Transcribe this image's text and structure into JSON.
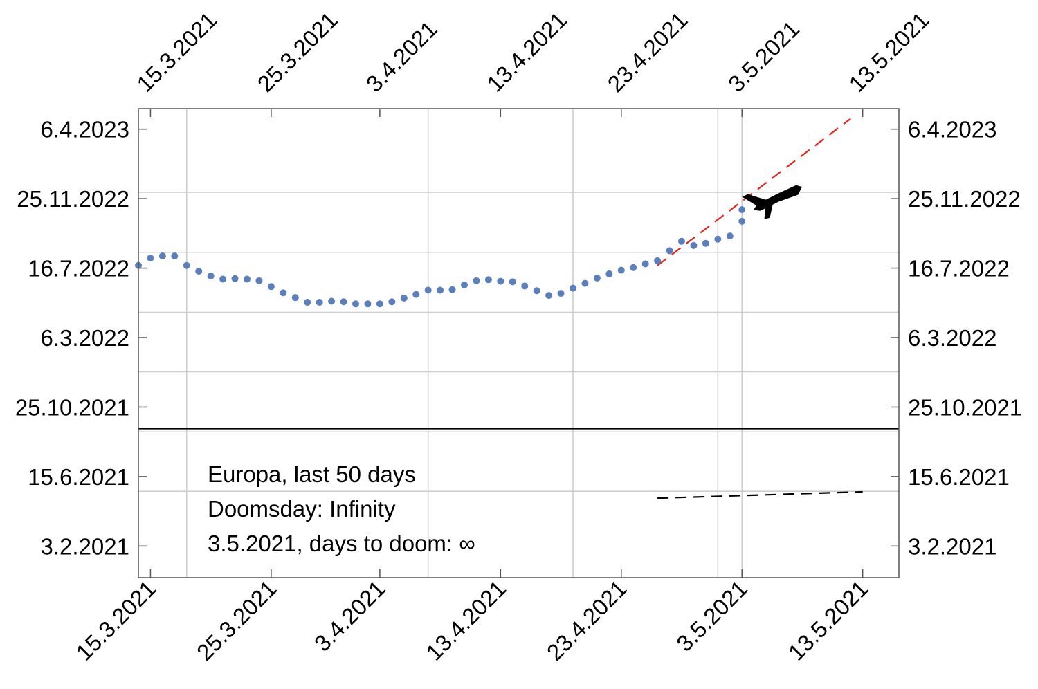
{
  "chart_data": {
    "type": "scatter",
    "x_axis": {
      "kind": "date",
      "range": [
        "2021-03-14",
        "2021-05-16"
      ],
      "ticks": [
        {
          "date": "2021-03-15",
          "label": "15.3.2021"
        },
        {
          "date": "2021-03-25",
          "label": "25.3.2021"
        },
        {
          "date": "2021-04-03",
          "label": "3.4.2021"
        },
        {
          "date": "2021-04-13",
          "label": "13.4.2021"
        },
        {
          "date": "2021-04-23",
          "label": "23.4.2021"
        },
        {
          "date": "2021-05-03",
          "label": "3.5.2021"
        },
        {
          "date": "2021-05-13",
          "label": "13.5.2021"
        }
      ],
      "gridlines": [
        "2021-03-18",
        "2021-04-07",
        "2021-04-19",
        "2021-05-01",
        "2021-05-03"
      ]
    },
    "y_axis": {
      "kind": "date",
      "range": [
        "2020-12-05",
        "2023-05-15"
      ],
      "ticks": [
        {
          "date": "2021-02-03",
          "label": "3.2.2021"
        },
        {
          "date": "2021-06-15",
          "label": "15.6.2021"
        },
        {
          "date": "2021-10-25",
          "label": "25.10.2021"
        },
        {
          "date": "2022-03-06",
          "label": "6.3.2022"
        },
        {
          "date": "2022-07-16",
          "label": "16.7.2022"
        },
        {
          "date": "2022-11-25",
          "label": "25.11.2022"
        },
        {
          "date": "2023-04-06",
          "label": "6.4.2023"
        }
      ],
      "gridlines": [
        "2021-05-18",
        "2021-09-08",
        "2021-12-31",
        "2022-04-23",
        "2022-08-15",
        "2022-12-07"
      ]
    },
    "reference_line": {
      "y": "2021-09-14"
    },
    "series": [
      {
        "color": "#5b7fbd",
        "x": [
          "2021-03-14",
          "2021-03-15",
          "2021-03-16",
          "2021-03-17",
          "2021-03-18",
          "2021-03-19",
          "2021-03-20",
          "2021-03-21",
          "2021-03-22",
          "2021-03-23",
          "2021-03-24",
          "2021-03-25",
          "2021-03-26",
          "2021-03-27",
          "2021-03-28",
          "2021-03-29",
          "2021-03-30",
          "2021-03-31",
          "2021-04-01",
          "2021-04-02",
          "2021-04-03",
          "2021-04-04",
          "2021-04-05",
          "2021-04-06",
          "2021-04-07",
          "2021-04-08",
          "2021-04-09",
          "2021-04-10",
          "2021-04-11",
          "2021-04-12",
          "2021-04-13",
          "2021-04-14",
          "2021-04-15",
          "2021-04-16",
          "2021-04-17",
          "2021-04-18",
          "2021-04-19",
          "2021-04-20",
          "2021-04-21",
          "2021-04-22",
          "2021-04-23",
          "2021-04-24",
          "2021-04-25",
          "2021-04-26",
          "2021-04-27",
          "2021-04-28",
          "2021-04-29",
          "2021-04-30",
          "2021-05-01",
          "2021-05-02",
          "2021-05-03"
        ],
        "y": [
          "2022-07-21",
          "2022-08-04",
          "2022-08-08",
          "2022-08-08",
          "2022-07-21",
          "2022-07-10",
          "2022-07-01",
          "2022-06-25",
          "2022-06-26",
          "2022-06-25",
          "2022-06-22",
          "2022-06-11",
          "2022-05-30",
          "2022-05-21",
          "2022-05-12",
          "2022-05-12",
          "2022-05-14",
          "2022-05-13",
          "2022-05-09",
          "2022-05-09",
          "2022-05-09",
          "2022-05-13",
          "2022-05-20",
          "2022-05-27",
          "2022-06-04",
          "2022-06-04",
          "2022-06-05",
          "2022-06-14",
          "2022-06-22",
          "2022-06-24",
          "2022-06-21",
          "2022-06-20",
          "2022-06-12",
          "2022-06-03",
          "2022-05-25",
          "2022-05-29",
          "2022-06-08",
          "2022-06-17",
          "2022-06-27",
          "2022-07-05",
          "2022-07-12",
          "2022-07-17",
          "2022-07-24",
          "2022-07-30",
          "2022-08-18",
          "2022-09-05",
          "2022-08-28",
          "2022-09-01",
          "2022-09-09",
          "2022-09-15",
          "2022-10-13"
        ]
      },
      {
        "color": "#5b7fbd",
        "x": [
          "2021-05-03"
        ],
        "y": [
          "2022-11-04"
        ]
      }
    ],
    "fit_lines": [
      {
        "color": "#e8221d",
        "dash": "dashed",
        "x": [
          "2021-04-26",
          "2021-05-12"
        ],
        "y": [
          "2022-07-21",
          "2023-04-26"
        ]
      },
      {
        "color": "#000000",
        "dash": "dashed",
        "x": [
          "2021-04-26",
          "2021-05-13"
        ],
        "y": [
          "2021-05-05",
          "2021-05-17"
        ]
      }
    ],
    "annotations": [
      "Europa, last 50 days",
      "Doomsday: Infinity",
      "3.5.2021, days to doom: ∞"
    ],
    "marker": {
      "icon": "airplane-icon",
      "x": "2021-05-06",
      "y": "2022-11-15"
    }
  }
}
